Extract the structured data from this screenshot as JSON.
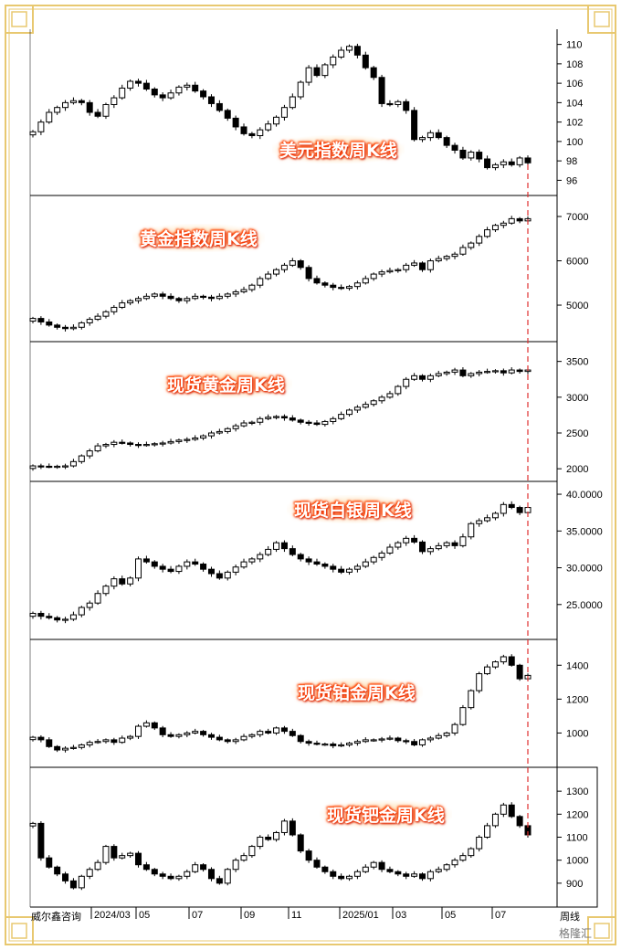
{
  "source_label": "威尔鑫咨询",
  "period_label": "周线",
  "watermark": "格隆汇",
  "colors": {
    "frame": "#e8c870",
    "candle_line": "#000000",
    "divider": "#000000",
    "dashed": "#e03030"
  },
  "x_dates": [
    "2024/03",
    "05",
    "07",
    "09",
    "11",
    "2025/01",
    "03",
    "05",
    "07"
  ],
  "chart_data": [
    {
      "type": "candlestick",
      "title": "美元指数周K线",
      "ylim": [
        95,
        111
      ],
      "yticks": [
        "96",
        "98",
        "100",
        "102",
        "104",
        "106",
        "108",
        "110"
      ],
      "closes": [
        101,
        102,
        103,
        103.5,
        104,
        104.2,
        104,
        103,
        102.6,
        103.8,
        104.5,
        105.5,
        106.2,
        106,
        105.4,
        104.8,
        104.5,
        105,
        105.6,
        105.8,
        105.2,
        104.6,
        103.9,
        103.2,
        102.4,
        101.5,
        100.8,
        100.6,
        101.2,
        101.8,
        102.5,
        103.5,
        104.6,
        106.1,
        107.6,
        106.8,
        107.9,
        108.7,
        109.4,
        109.8,
        108.9,
        107.6,
        106.6,
        103.9,
        103.8,
        104.1,
        103.2,
        100.2,
        100.4,
        100.9,
        100.4,
        99.6,
        99.1,
        98.3,
        98.9,
        98.2,
        97.3,
        97.6,
        97.9,
        97.6,
        98.3,
        97.8
      ]
    },
    {
      "type": "candlestick",
      "title": "黄金指数周K线",
      "ylim": [
        4300,
        7350
      ],
      "yticks": [
        "5000",
        "6000",
        "7000"
      ],
      "closes": [
        4700,
        4620,
        4550,
        4500,
        4470,
        4500,
        4600,
        4680,
        4750,
        4850,
        4950,
        5050,
        5100,
        5150,
        5200,
        5250,
        5200,
        5150,
        5100,
        5150,
        5200,
        5180,
        5150,
        5200,
        5250,
        5300,
        5350,
        5450,
        5600,
        5700,
        5800,
        5900,
        6000,
        5850,
        5600,
        5500,
        5450,
        5400,
        5380,
        5420,
        5500,
        5600,
        5700,
        5750,
        5780,
        5800,
        5900,
        5950,
        5800,
        6000,
        6050,
        6100,
        6150,
        6300,
        6400,
        6550,
        6700,
        6800,
        6850,
        6950,
        6900,
        6950
      ]
    },
    {
      "type": "candlestick",
      "title": "现货黄金周K线",
      "ylim": [
        1900,
        3700
      ],
      "yticks": [
        "2000",
        "2500",
        "3000",
        "3500"
      ],
      "closes": [
        2040,
        2035,
        2030,
        2035,
        2040,
        2100,
        2180,
        2250,
        2320,
        2340,
        2370,
        2360,
        2340,
        2330,
        2340,
        2350,
        2360,
        2380,
        2400,
        2410,
        2430,
        2460,
        2500,
        2520,
        2560,
        2600,
        2640,
        2650,
        2700,
        2720,
        2730,
        2710,
        2680,
        2650,
        2640,
        2620,
        2660,
        2700,
        2760,
        2820,
        2860,
        2900,
        2950,
        3000,
        3050,
        3150,
        3250,
        3300,
        3250,
        3300,
        3330,
        3350,
        3380,
        3300,
        3330,
        3350,
        3360,
        3370,
        3340,
        3380,
        3360,
        3380
      ]
    },
    {
      "type": "candlestick",
      "title": "现货白银周K线",
      "ylim": [
        21000,
        41000
      ],
      "yticks": [
        "25.0000",
        "30.0000",
        "35.0000",
        "40.0000"
      ],
      "closes": [
        23.8,
        23.4,
        23.2,
        22.9,
        23.0,
        23.6,
        24.6,
        25.2,
        26.5,
        27.5,
        28.5,
        27.8,
        28.6,
        31.2,
        30.8,
        30.2,
        29.8,
        29.5,
        30.2,
        30.8,
        30.5,
        29.8,
        29.2,
        28.6,
        29.4,
        30.1,
        30.8,
        31.2,
        31.8,
        32.5,
        33.4,
        32.6,
        31.8,
        31.2,
        30.8,
        30.5,
        30.2,
        29.8,
        29.4,
        29.8,
        30.2,
        30.8,
        31.4,
        32.0,
        32.8,
        33.4,
        34.0,
        33.5,
        32.2,
        32.6,
        33.0,
        33.4,
        33.0,
        34.2,
        36.0,
        36.4,
        36.8,
        37.4,
        38.6,
        38.2,
        37.5,
        38.2
      ]
    },
    {
      "type": "candlestick",
      "title": "现货铂金周K线",
      "ylim": [
        830,
        1520
      ],
      "yticks": [
        "1000",
        "1200",
        "1400"
      ],
      "closes": [
        975,
        960,
        920,
        900,
        910,
        915,
        930,
        945,
        950,
        960,
        945,
        970,
        980,
        1040,
        1060,
        1030,
        990,
        980,
        990,
        1000,
        1010,
        990,
        975,
        960,
        950,
        960,
        980,
        990,
        1010,
        1000,
        1030,
        1010,
        985,
        950,
        940,
        935,
        935,
        925,
        930,
        940,
        950,
        960,
        960,
        965,
        970,
        955,
        950,
        930,
        960,
        970,
        985,
        1000,
        1050,
        1150,
        1250,
        1350,
        1390,
        1420,
        1450,
        1400,
        1320,
        1340
      ]
    },
    {
      "type": "candlestick",
      "title": "现货钯金周K线",
      "ylim": [
        820,
        1380
      ],
      "yticks": [
        "900",
        "1000",
        "1100",
        "1200",
        "1300"
      ],
      "closes": [
        1160,
        1010,
        970,
        940,
        910,
        880,
        930,
        960,
        990,
        1060,
        1010,
        1020,
        1030,
        980,
        960,
        940,
        930,
        920,
        930,
        950,
        980,
        960,
        920,
        900,
        960,
        1000,
        1020,
        1060,
        1100,
        1090,
        1120,
        1170,
        1110,
        1040,
        1000,
        970,
        950,
        930,
        920,
        930,
        950,
        970,
        990,
        960,
        950,
        940,
        930,
        940,
        920,
        950,
        960,
        980,
        1000,
        1020,
        1050,
        1100,
        1150,
        1200,
        1240,
        1190,
        1150,
        1110
      ]
    }
  ]
}
